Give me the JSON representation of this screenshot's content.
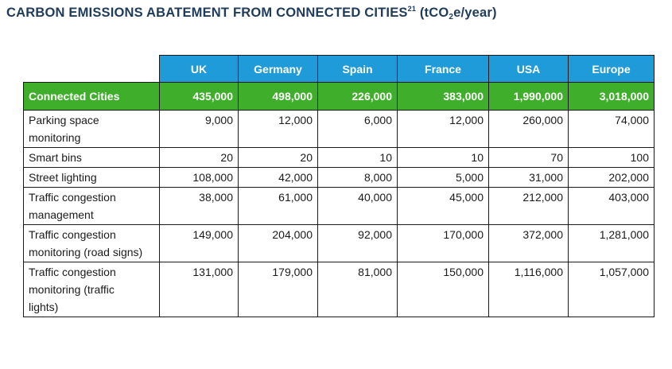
{
  "title": {
    "main": "CARBON EMISSIONS ABATEMENT FROM CONNECTED CITIES",
    "footnote": "21",
    "unit_pre": "(tCO",
    "unit_sub": "2",
    "unit_post": "e/year)"
  },
  "table": {
    "columns": [
      "UK",
      "Germany",
      "Spain",
      "France",
      "USA",
      "Europe"
    ],
    "total": {
      "label": "Connected Cities",
      "values": [
        "435,000",
        "498,000",
        "226,000",
        "383,000",
        "1,990,000",
        "3,018,000"
      ]
    },
    "rows": [
      {
        "label": "Parking space monitoring",
        "values": [
          "9,000",
          "12,000",
          "6,000",
          "12,000",
          "260,000",
          "74,000"
        ]
      },
      {
        "label": "Smart bins",
        "values": [
          "20",
          "20",
          "10",
          "10",
          "70",
          "100"
        ]
      },
      {
        "label": "Street lighting",
        "values": [
          "108,000",
          "42,000",
          "8,000",
          "5,000",
          "31,000",
          "202,000"
        ]
      },
      {
        "label": "Traffic congestion management",
        "values": [
          "38,000",
          "61,000",
          "40,000",
          "45,000",
          "212,000",
          "403,000"
        ]
      },
      {
        "label": "Traffic congestion monitoring (road signs)",
        "values": [
          "149,000",
          "204,000",
          "92,000",
          "170,000",
          "372,000",
          "1,281,000"
        ]
      },
      {
        "label": "Traffic congestion monitoring (traffic lights)",
        "values": [
          "131,000",
          "179,000",
          "81,000",
          "150,000",
          "1,116,000",
          "1,057,000"
        ]
      }
    ]
  }
}
